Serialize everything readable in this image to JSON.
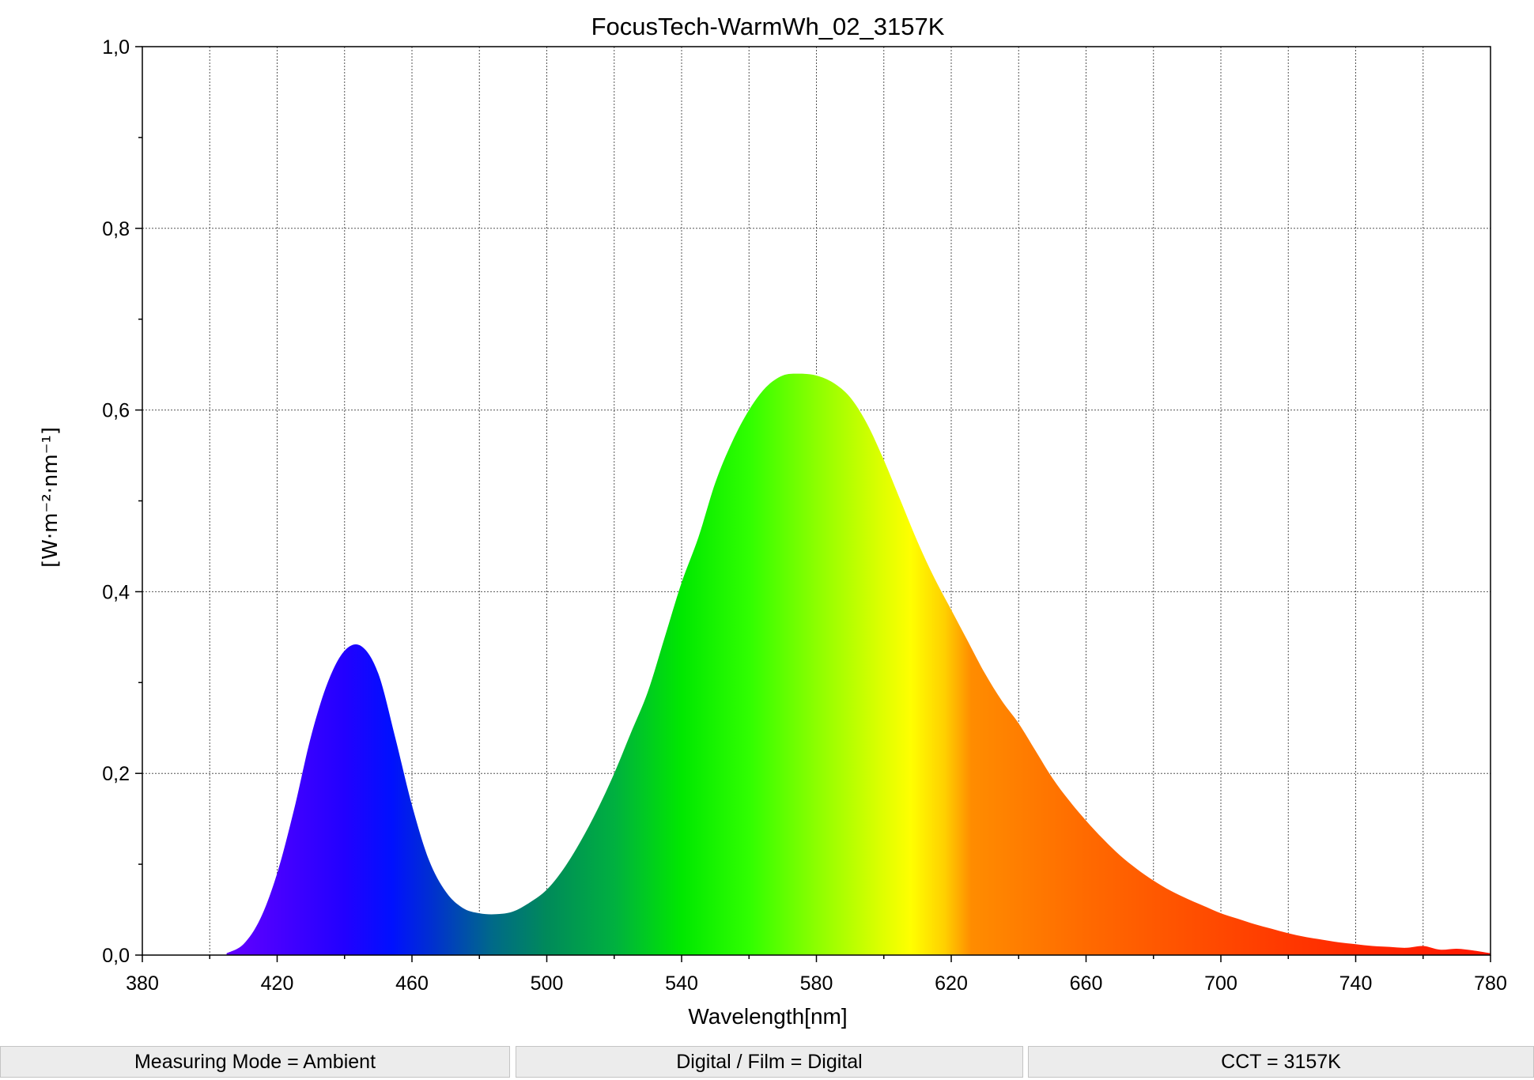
{
  "chart_data": {
    "type": "area",
    "title": "FocusTech-WarmWh_02_3157K",
    "xlabel": "Wavelength[nm]",
    "ylabel": "[W·m⁻²·nm⁻¹]",
    "xlim": [
      380,
      780
    ],
    "ylim": [
      0,
      1.0
    ],
    "x_ticks": [
      380,
      420,
      460,
      500,
      540,
      580,
      620,
      660,
      700,
      740,
      780
    ],
    "x_tick_labels": [
      "380",
      "420",
      "460",
      "500",
      "540",
      "580",
      "620",
      "660",
      "700",
      "740",
      "780"
    ],
    "y_ticks": [
      0,
      0.2,
      0.4,
      0.6,
      0.8,
      1.0
    ],
    "y_tick_labels": [
      "0,0",
      "0,2",
      "0,4",
      "0,6",
      "0,8",
      "1,0"
    ],
    "grid": true,
    "fill": "visible-spectrum gradient",
    "x": [
      405,
      410,
      415,
      420,
      425,
      430,
      435,
      440,
      445,
      450,
      455,
      460,
      465,
      470,
      475,
      480,
      485,
      490,
      495,
      500,
      505,
      510,
      515,
      520,
      525,
      530,
      535,
      540,
      545,
      550,
      555,
      560,
      565,
      570,
      575,
      580,
      585,
      590,
      595,
      600,
      605,
      610,
      615,
      620,
      625,
      630,
      635,
      640,
      645,
      650,
      655,
      660,
      665,
      670,
      675,
      680,
      685,
      690,
      695,
      700,
      705,
      710,
      715,
      720,
      725,
      730,
      735,
      740,
      745,
      750,
      755,
      760,
      765,
      770,
      775,
      780
    ],
    "values": [
      0.002,
      0.012,
      0.04,
      0.09,
      0.16,
      0.24,
      0.3,
      0.335,
      0.34,
      0.31,
      0.24,
      0.165,
      0.105,
      0.07,
      0.052,
      0.046,
      0.045,
      0.048,
      0.058,
      0.072,
      0.095,
      0.125,
      0.16,
      0.2,
      0.245,
      0.29,
      0.35,
      0.41,
      0.46,
      0.52,
      0.565,
      0.6,
      0.625,
      0.638,
      0.64,
      0.638,
      0.63,
      0.614,
      0.585,
      0.545,
      0.5,
      0.455,
      0.415,
      0.38,
      0.345,
      0.31,
      0.28,
      0.255,
      0.225,
      0.195,
      0.17,
      0.148,
      0.128,
      0.11,
      0.095,
      0.082,
      0.071,
      0.062,
      0.054,
      0.046,
      0.04,
      0.034,
      0.029,
      0.024,
      0.02,
      0.017,
      0.014,
      0.012,
      0.01,
      0.009,
      0.008,
      0.01,
      0.006,
      0.007,
      0.005,
      0.002
    ]
  },
  "footer": {
    "measuring_mode": "Measuring Mode = Ambient",
    "digital_film": "Digital / Film = Digital",
    "cct": "CCT = 3157K"
  }
}
